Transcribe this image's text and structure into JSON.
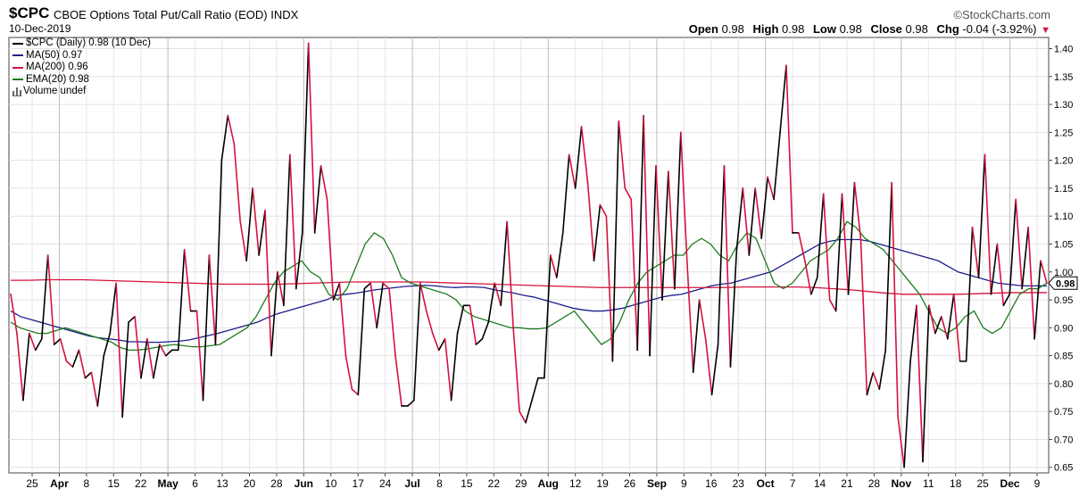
{
  "header": {
    "symbol": "$CPC",
    "title": "CBOE Options Total Put/Call Ratio (EOD)",
    "exchange": "INDX",
    "date": "10-Dec-2019",
    "brand": "©StockCharts.com",
    "open_label": "Open",
    "open": "0.98",
    "high_label": "High",
    "high": "0.98",
    "low_label": "Low",
    "low": "0.98",
    "close_label": "Close",
    "close": "0.98",
    "chg_label": "Chg",
    "chg": "-0.04 (-3.92%)",
    "chg_arrow": "▼"
  },
  "legend": [
    {
      "text": "$CPC (Daily) 0.98 (10 Dec)",
      "color": "#000000"
    },
    {
      "text": "MA(50) 0.97",
      "color": "#1c1c8c"
    },
    {
      "text": "MA(200) 0.96",
      "color": "#d4123c"
    },
    {
      "text": "EMA(20) 0.98",
      "color": "#1e7b1e"
    },
    {
      "text": "Volume undef",
      "color": "#666666",
      "icon": "volume-bars-icon"
    }
  ],
  "chart_data": {
    "type": "line",
    "title": "CBOE Options Total Put/Call Ratio (EOD)",
    "y_axis_side": "right",
    "ylim": [
      0.64,
      1.42
    ],
    "y_ticks": [
      0.65,
      0.7,
      0.75,
      0.8,
      0.85,
      0.9,
      0.95,
      1.0,
      1.05,
      1.1,
      1.15,
      1.2,
      1.25,
      1.3,
      1.35,
      1.4
    ],
    "last_value_label": "0.98",
    "x_tick_labels": [
      {
        "label": "25",
        "major": false
      },
      {
        "label": "Apr",
        "major": true
      },
      {
        "label": "8",
        "major": false
      },
      {
        "label": "15",
        "major": false
      },
      {
        "label": "22",
        "major": false
      },
      {
        "label": "May",
        "major": true
      },
      {
        "label": "6",
        "major": false
      },
      {
        "label": "13",
        "major": false
      },
      {
        "label": "20",
        "major": false
      },
      {
        "label": "28",
        "major": false
      },
      {
        "label": "Jun",
        "major": true
      },
      {
        "label": "10",
        "major": false
      },
      {
        "label": "17",
        "major": false
      },
      {
        "label": "24",
        "major": false
      },
      {
        "label": "Jul",
        "major": true
      },
      {
        "label": "8",
        "major": false
      },
      {
        "label": "15",
        "major": false
      },
      {
        "label": "22",
        "major": false
      },
      {
        "label": "29",
        "major": false
      },
      {
        "label": "Aug",
        "major": true
      },
      {
        "label": "12",
        "major": false
      },
      {
        "label": "19",
        "major": false
      },
      {
        "label": "26",
        "major": false
      },
      {
        "label": "Sep",
        "major": true
      },
      {
        "label": "9",
        "major": false
      },
      {
        "label": "16",
        "major": false
      },
      {
        "label": "23",
        "major": false
      },
      {
        "label": "Oct",
        "major": true
      },
      {
        "label": "7",
        "major": false
      },
      {
        "label": "14",
        "major": false
      },
      {
        "label": "21",
        "major": false
      },
      {
        "label": "28",
        "major": false
      },
      {
        "label": "Nov",
        "major": true
      },
      {
        "label": "11",
        "major": false
      },
      {
        "label": "18",
        "major": false
      },
      {
        "label": "25",
        "major": false
      },
      {
        "label": "Dec",
        "major": true
      },
      {
        "label": "9",
        "major": false
      }
    ],
    "up_color": "#000000",
    "down_color": "#d4123c",
    "series": [
      {
        "name": "$CPC (Daily)",
        "role": "price",
        "values": [
          0.96,
          0.89,
          0.77,
          0.89,
          0.86,
          0.88,
          1.03,
          0.87,
          0.88,
          0.84,
          0.83,
          0.86,
          0.81,
          0.82,
          0.76,
          0.85,
          0.89,
          0.98,
          0.74,
          0.91,
          0.92,
          0.81,
          0.88,
          0.81,
          0.87,
          0.85,
          0.86,
          0.86,
          1.04,
          0.93,
          0.93,
          0.77,
          1.03,
          0.87,
          1.2,
          1.28,
          1.23,
          1.09,
          1.02,
          1.15,
          1.03,
          1.11,
          0.85,
          1.0,
          0.94,
          1.21,
          0.97,
          1.07,
          1.41,
          1.07,
          1.19,
          1.13,
          0.95,
          0.98,
          0.85,
          0.79,
          0.78,
          0.97,
          0.98,
          0.9,
          0.98,
          0.97,
          0.85,
          0.76,
          0.76,
          0.77,
          0.98,
          0.93,
          0.89,
          0.86,
          0.88,
          0.77,
          0.89,
          0.94,
          0.94,
          0.87,
          0.88,
          0.91,
          0.98,
          0.94,
          1.09,
          0.9,
          0.75,
          0.73,
          0.77,
          0.81,
          0.81,
          1.03,
          0.99,
          1.07,
          1.21,
          1.15,
          1.26,
          1.16,
          1.02,
          1.12,
          1.1,
          0.84,
          1.27,
          1.15,
          1.13,
          0.86,
          1.28,
          0.85,
          1.19,
          0.95,
          1.18,
          0.97,
          1.25,
          1.02,
          0.82,
          0.95,
          0.88,
          0.78,
          0.87,
          1.19,
          0.83,
          1.04,
          1.15,
          1.03,
          1.15,
          1.06,
          1.17,
          1.13,
          1.25,
          1.37,
          1.07,
          1.07,
          1.02,
          0.96,
          0.99,
          1.14,
          0.95,
          0.93,
          1.14,
          0.96,
          1.16,
          1.06,
          0.78,
          0.82,
          0.79,
          0.86,
          1.16,
          0.74,
          0.65,
          0.84,
          0.94,
          0.66,
          0.94,
          0.89,
          0.92,
          0.88,
          0.96,
          0.84,
          0.84,
          1.08,
          0.99,
          1.21,
          0.96,
          1.05,
          0.94,
          0.96,
          1.13,
          0.97,
          1.08,
          0.88,
          1.02,
          0.98
        ]
      },
      {
        "name": "MA(50)",
        "color": "#1c1c8c",
        "values": [
          0.93,
          0.92,
          0.915,
          0.91,
          0.905,
          0.9,
          0.895,
          0.89,
          0.885,
          0.882,
          0.88,
          0.878,
          0.875,
          0.875,
          0.874,
          0.874,
          0.875,
          0.876,
          0.878,
          0.882,
          0.886,
          0.89,
          0.895,
          0.9,
          0.905,
          0.91,
          0.918,
          0.925,
          0.93,
          0.935,
          0.94,
          0.945,
          0.95,
          0.958,
          0.96,
          0.962,
          0.965,
          0.968,
          0.97,
          0.972,
          0.974,
          0.975,
          0.976,
          0.975,
          0.973,
          0.972,
          0.973,
          0.973,
          0.972,
          0.968,
          0.965,
          0.962,
          0.958,
          0.955,
          0.95,
          0.945,
          0.94,
          0.935,
          0.932,
          0.93,
          0.93,
          0.932,
          0.935,
          0.94,
          0.945,
          0.95,
          0.955,
          0.958,
          0.96,
          0.965,
          0.97,
          0.975,
          0.978,
          0.98,
          0.985,
          0.99,
          0.995,
          1.0,
          1.01,
          1.02,
          1.03,
          1.04,
          1.05,
          1.055,
          1.058,
          1.058,
          1.058,
          1.055,
          1.05,
          1.045,
          1.04,
          1.035,
          1.03,
          1.025,
          1.02,
          1.01,
          1.0,
          0.995,
          0.99,
          0.985,
          0.98,
          0.978,
          0.976,
          0.975,
          0.975,
          0.975
        ]
      },
      {
        "name": "MA(200)",
        "color": "#d4123c",
        "values": [
          0.985,
          0.985,
          0.986,
          0.986,
          0.986,
          0.985,
          0.984,
          0.983,
          0.982,
          0.981,
          0.98,
          0.979,
          0.978,
          0.978,
          0.978,
          0.978,
          0.979,
          0.98,
          0.981,
          0.982,
          0.982,
          0.982,
          0.982,
          0.982,
          0.981,
          0.98,
          0.979,
          0.978,
          0.977,
          0.976,
          0.975,
          0.974,
          0.973,
          0.972,
          0.972,
          0.972,
          0.972,
          0.972,
          0.972,
          0.972,
          0.972,
          0.973,
          0.973,
          0.973,
          0.973,
          0.972,
          0.97,
          0.968,
          0.965,
          0.962,
          0.96,
          0.96,
          0.96,
          0.96,
          0.961,
          0.962,
          0.963,
          0.963,
          0.963
        ]
      },
      {
        "name": "EMA(20)",
        "color": "#1e7b1e",
        "values": [
          0.91,
          0.9,
          0.895,
          0.89,
          0.89,
          0.895,
          0.9,
          0.895,
          0.89,
          0.885,
          0.88,
          0.875,
          0.865,
          0.86,
          0.86,
          0.862,
          0.865,
          0.868,
          0.87,
          0.868,
          0.866,
          0.866,
          0.868,
          0.87,
          0.88,
          0.89,
          0.9,
          0.92,
          0.95,
          0.98,
          1.0,
          1.01,
          1.02,
          1.0,
          0.99,
          0.96,
          0.95,
          0.97,
          1.01,
          1.05,
          1.07,
          1.06,
          1.03,
          0.99,
          0.98,
          0.975,
          0.97,
          0.965,
          0.96,
          0.95,
          0.93,
          0.92,
          0.915,
          0.91,
          0.905,
          0.9,
          0.9,
          0.898,
          0.898,
          0.9,
          0.91,
          0.92,
          0.93,
          0.91,
          0.89,
          0.87,
          0.88,
          0.91,
          0.95,
          0.98,
          1.0,
          1.01,
          1.02,
          1.03,
          1.03,
          1.05,
          1.06,
          1.05,
          1.03,
          1.02,
          1.05,
          1.07,
          1.06,
          1.02,
          0.98,
          0.97,
          0.98,
          1.0,
          1.02,
          1.03,
          1.04,
          1.06,
          1.09,
          1.08,
          1.06,
          1.05,
          1.04,
          1.02,
          1.0,
          0.98,
          0.96,
          0.93,
          0.9,
          0.89,
          0.9,
          0.92,
          0.93,
          0.9,
          0.89,
          0.9,
          0.93,
          0.96,
          0.97,
          0.97,
          0.98
        ]
      }
    ]
  }
}
